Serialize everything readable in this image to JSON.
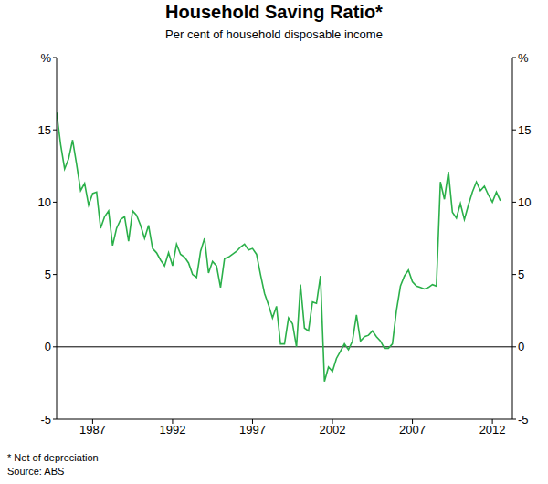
{
  "chart_data": {
    "type": "line",
    "title": "Household Saving Ratio*",
    "subtitle": "Per cent of household disposable income",
    "footnote": "* Net of depreciation",
    "source": "Source: ABS",
    "x": [
      1984.75,
      1985,
      1985.25,
      1985.5,
      1985.75,
      1986,
      1986.25,
      1986.5,
      1986.75,
      1987,
      1987.25,
      1987.5,
      1987.75,
      1988,
      1988.25,
      1988.5,
      1988.75,
      1989,
      1989.25,
      1989.5,
      1989.75,
      1990,
      1990.25,
      1990.5,
      1990.75,
      1991,
      1991.25,
      1991.5,
      1991.75,
      1992,
      1992.25,
      1992.5,
      1992.75,
      1993,
      1993.25,
      1993.5,
      1993.75,
      1994,
      1994.25,
      1994.5,
      1994.75,
      1995,
      1995.25,
      1995.5,
      1995.75,
      1996,
      1996.25,
      1996.5,
      1996.75,
      1997,
      1997.25,
      1997.5,
      1997.75,
      1998,
      1998.25,
      1998.5,
      1998.75,
      1999,
      1999.25,
      1999.5,
      1999.75,
      2000,
      2000.25,
      2000.5,
      2000.75,
      2001,
      2001.25,
      2001.5,
      2001.75,
      2002,
      2002.25,
      2002.5,
      2002.75,
      2003,
      2003.25,
      2003.5,
      2003.75,
      2004,
      2004.25,
      2004.5,
      2004.75,
      2005,
      2005.25,
      2005.5,
      2005.75,
      2006,
      2006.25,
      2006.5,
      2006.75,
      2007,
      2007.25,
      2007.5,
      2007.75,
      2008,
      2008.25,
      2008.5,
      2008.75,
      2009,
      2009.25,
      2009.5,
      2009.75,
      2010,
      2010.25,
      2010.5,
      2010.75,
      2011,
      2011.25,
      2011.5,
      2011.75,
      2012,
      2012.25,
      2012.5
    ],
    "series": [
      {
        "name": "Household Saving Ratio",
        "color": "#2bb04a",
        "values": [
          16.2,
          14.0,
          12.3,
          13.0,
          14.3,
          12.6,
          10.8,
          11.3,
          9.8,
          10.6,
          10.7,
          8.2,
          9.0,
          9.4,
          7.0,
          8.2,
          8.8,
          9.0,
          7.3,
          9.4,
          9.1,
          8.4,
          7.5,
          8.4,
          6.8,
          6.5,
          6.0,
          5.6,
          6.5,
          5.6,
          7.1,
          6.4,
          6.2,
          5.8,
          5.0,
          4.8,
          6.6,
          7.5,
          5.1,
          5.9,
          5.6,
          4.1,
          6.1,
          6.2,
          6.4,
          6.6,
          6.9,
          7.1,
          6.7,
          6.8,
          6.4,
          5.0,
          3.7,
          2.9,
          2.0,
          2.8,
          0.2,
          0.2,
          2.0,
          1.6,
          0.0,
          4.3,
          1.3,
          1.1,
          3.1,
          3.0,
          4.9,
          -2.4,
          -1.4,
          -1.7,
          -0.8,
          -0.3,
          0.2,
          -0.2,
          0.4,
          2.2,
          0.4,
          0.7,
          0.8,
          1.1,
          0.7,
          0.4,
          -0.1,
          -0.1,
          0.2,
          2.5,
          4.2,
          4.9,
          5.3,
          4.5,
          4.2,
          4.1,
          4.0,
          4.1,
          4.3,
          4.2,
          11.4,
          10.2,
          12.1,
          9.3,
          8.9,
          9.9,
          8.8,
          9.8,
          10.7,
          11.4,
          10.8,
          11.1,
          10.5,
          10.0,
          10.7,
          10.1
        ]
      }
    ],
    "xlim": [
      1984.75,
      2013.25
    ],
    "xticks": [
      1987,
      1992,
      1997,
      2002,
      2007,
      2012
    ],
    "ylim": [
      -5,
      20
    ],
    "yticks": [
      -5,
      0,
      5,
      10,
      15,
      {
        "value": 20,
        "label": "%"
      }
    ],
    "grid": false
  }
}
